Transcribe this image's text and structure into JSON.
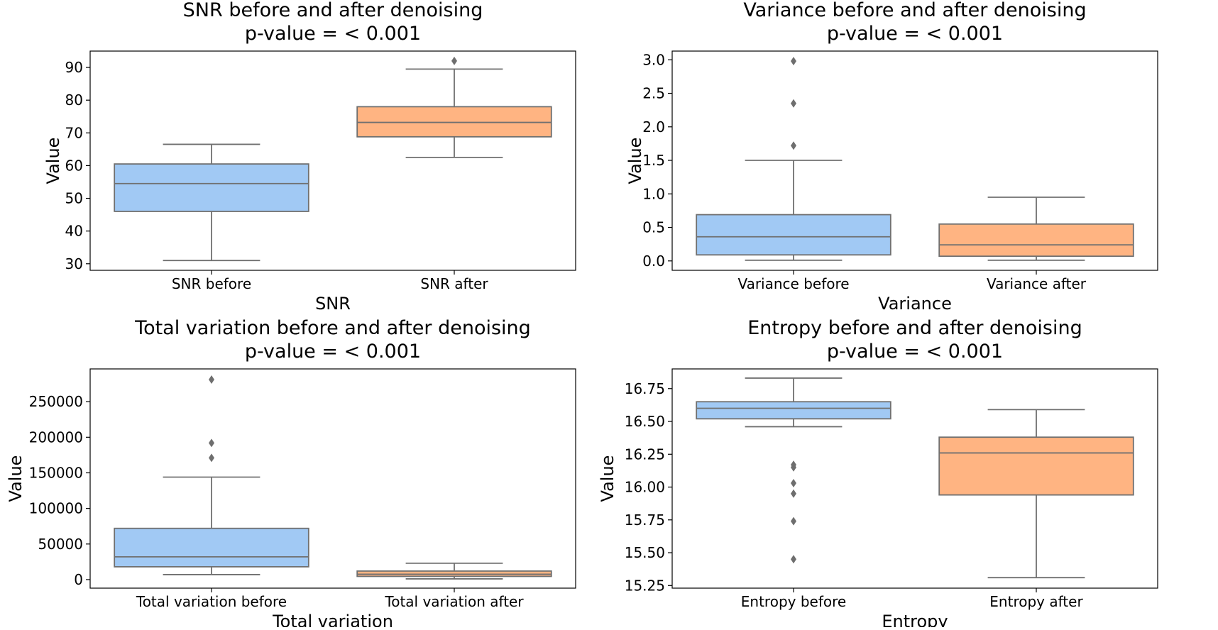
{
  "colors": {
    "before": "#a1c9f4",
    "after": "#ffb482",
    "line": "#707070",
    "outlier": "#6e6e6e",
    "axes": "#000000"
  },
  "chart_data": [
    {
      "type": "box",
      "title": "SNR before and after denoising",
      "subtitle": "p-value = < 0.001",
      "xlabel": "SNR",
      "ylabel": "Value",
      "ylim": [
        28,
        95
      ],
      "yticks": [
        30,
        40,
        50,
        60,
        70,
        80,
        90
      ],
      "ytick_labels": [
        "30",
        "40",
        "50",
        "60",
        "70",
        "80",
        "90"
      ],
      "categories": [
        "SNR before",
        "SNR after"
      ],
      "boxes": [
        {
          "whislo": 31,
          "q1": 46,
          "med": 54.5,
          "q3": 60.5,
          "whishi": 66.5,
          "fliers": []
        },
        {
          "whislo": 62.5,
          "q1": 68.8,
          "med": 73.2,
          "q3": 78,
          "whishi": 89.5,
          "fliers": [
            92
          ]
        }
      ]
    },
    {
      "type": "box",
      "title": "Variance before and after denoising",
      "subtitle": "p-value = < 0.001",
      "xlabel": "Variance",
      "ylabel": "Value",
      "ylim": [
        -0.14,
        3.13
      ],
      "yticks": [
        0,
        0.5,
        1,
        1.5,
        2,
        2.5,
        3
      ],
      "ytick_labels": [
        "0.0",
        "0.5",
        "1.0",
        "1.5",
        "2.0",
        "2.5",
        "3.0"
      ],
      "categories": [
        "Variance before",
        "Variance after"
      ],
      "boxes": [
        {
          "whislo": 0.01,
          "q1": 0.09,
          "med": 0.36,
          "q3": 0.69,
          "whishi": 1.5,
          "fliers": [
            1.72,
            2.35,
            2.98
          ]
        },
        {
          "whislo": 0.01,
          "q1": 0.07,
          "med": 0.24,
          "q3": 0.55,
          "whishi": 0.95,
          "fliers": []
        }
      ]
    },
    {
      "type": "box",
      "title": "Total variation before and after denoising",
      "subtitle": "p-value  = < 0.001",
      "xlabel": "Total variation",
      "ylabel": "Value",
      "ylim": [
        -12000,
        296000
      ],
      "yticks": [
        0,
        50000,
        100000,
        150000,
        200000,
        250000
      ],
      "ytick_labels": [
        "0",
        "50000",
        "100000",
        "150000",
        "200000",
        "250000"
      ],
      "categories": [
        "Total variation before",
        "Total variation after"
      ],
      "boxes": [
        {
          "whislo": 7000,
          "q1": 18000,
          "med": 32000,
          "q3": 72000,
          "whishi": 144000,
          "fliers": [
            171000,
            192000,
            281000
          ]
        },
        {
          "whislo": 1000,
          "q1": 4500,
          "med": 7500,
          "q3": 12000,
          "whishi": 23000,
          "fliers": []
        }
      ]
    },
    {
      "type": "box",
      "title": "Entropy before and after denoising",
      "subtitle": "p-value  = < 0.001",
      "xlabel": "Entropy",
      "ylabel": "Value",
      "ylim": [
        15.23,
        16.9
      ],
      "yticks": [
        15.25,
        15.5,
        15.75,
        16,
        16.25,
        16.5,
        16.75
      ],
      "ytick_labels": [
        "15.25",
        "15.50",
        "15.75",
        "16.00",
        "16.25",
        "16.50",
        "16.75"
      ],
      "categories": [
        "Entropy before",
        "Entropy after"
      ],
      "boxes": [
        {
          "whislo": 16.46,
          "q1": 16.52,
          "med": 16.6,
          "q3": 16.65,
          "whishi": 16.83,
          "fliers": [
            16.17,
            16.15,
            16.03,
            15.95,
            15.74,
            15.45
          ]
        },
        {
          "whislo": 15.31,
          "q1": 15.94,
          "med": 16.26,
          "q3": 16.38,
          "whishi": 16.59,
          "fliers": []
        }
      ]
    }
  ]
}
